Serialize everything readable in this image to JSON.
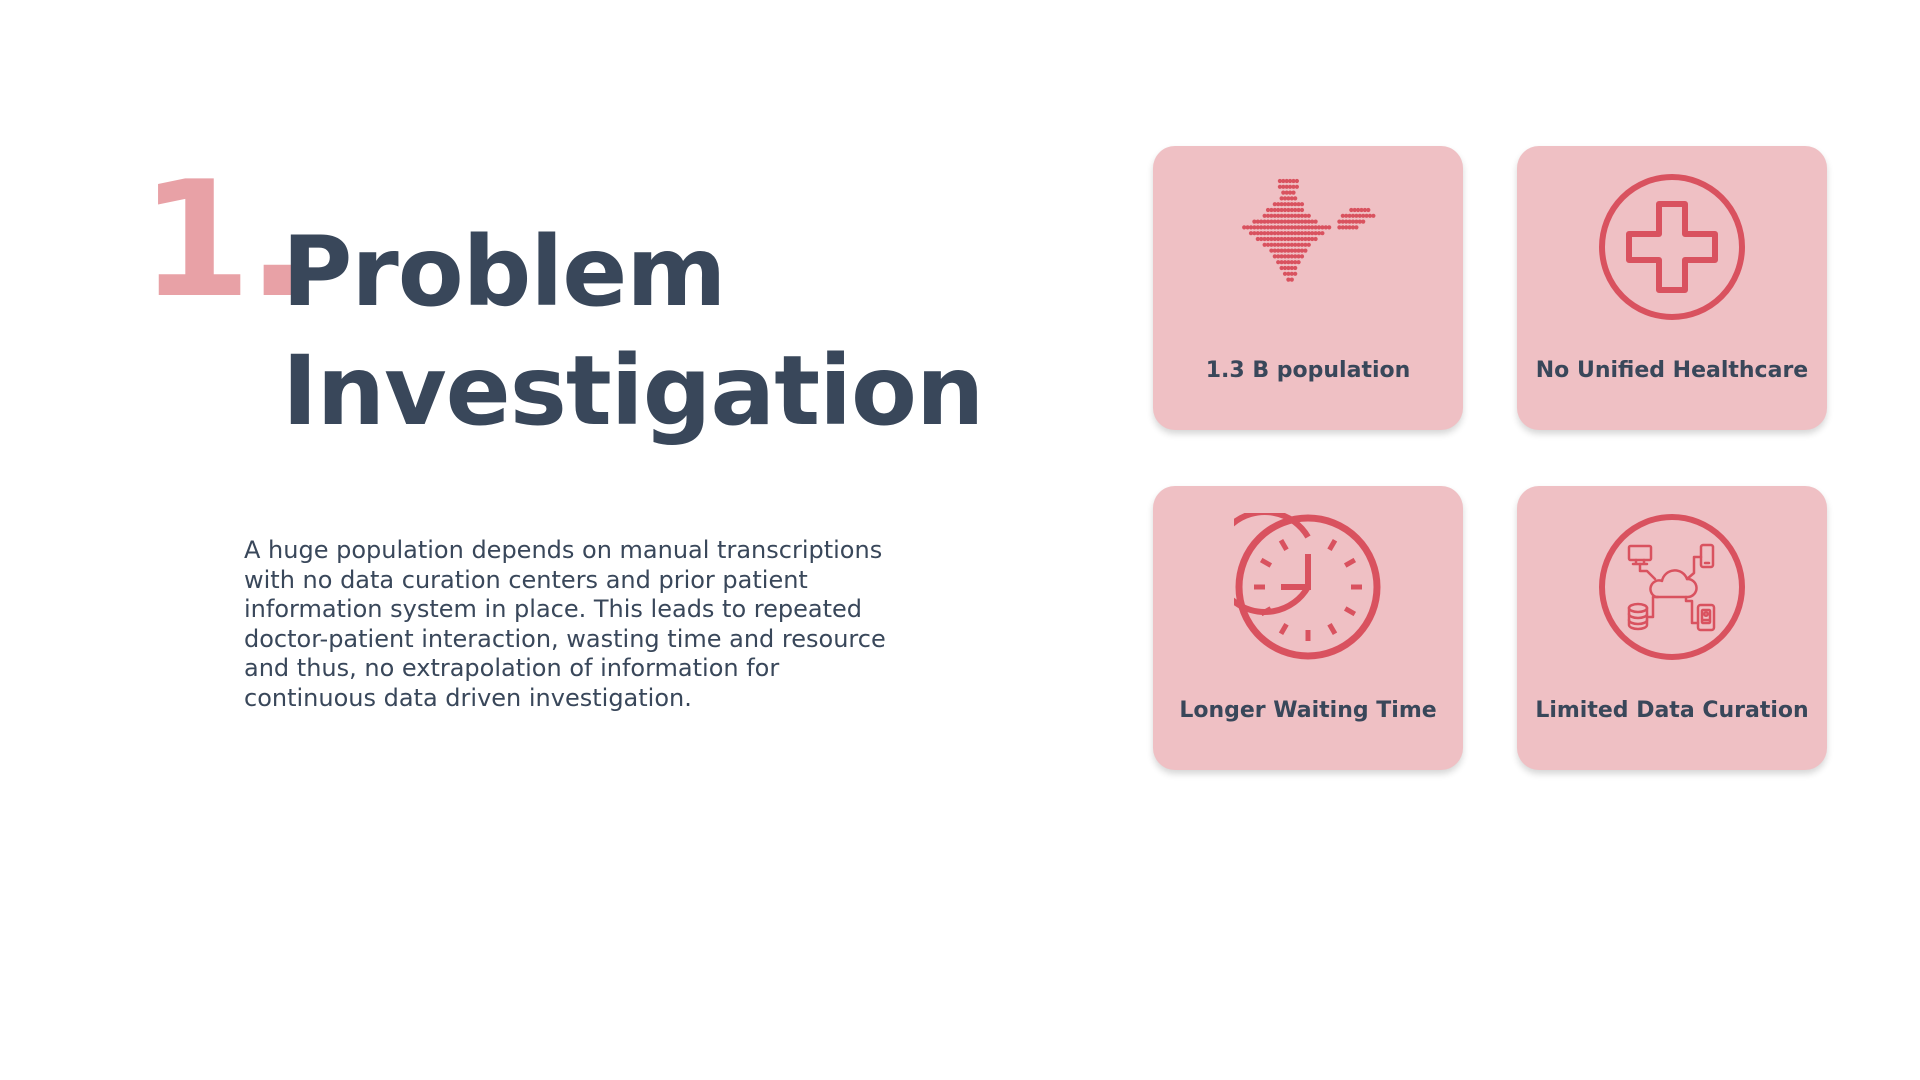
{
  "slide": {
    "number": "1.",
    "title_line1": "Problem",
    "title_line2": "Investigation",
    "description": "A huge population depends on manual transcriptions\nwith no data curation centers and prior patient\ninformation  system in place. This leads to repeated\ndoctor-patient interaction, wasting time and resource\nand thus, no  extrapolation of information for\ncontinuous data driven investigation."
  },
  "cards": [
    {
      "label": "1.3 B population",
      "icon": "india-map-icon"
    },
    {
      "label": "No Unified Healthcare",
      "icon": "medical-cross-icon"
    },
    {
      "label": "Longer Waiting Time",
      "icon": "clock-icon"
    },
    {
      "label": "Limited Data Curation",
      "icon": "cloud-network-icon"
    }
  ],
  "colors": {
    "accent": "#e8a1a6",
    "card_background": "#efc0c4",
    "icon_red": "#d9525f",
    "text_dark": "#39475a"
  }
}
